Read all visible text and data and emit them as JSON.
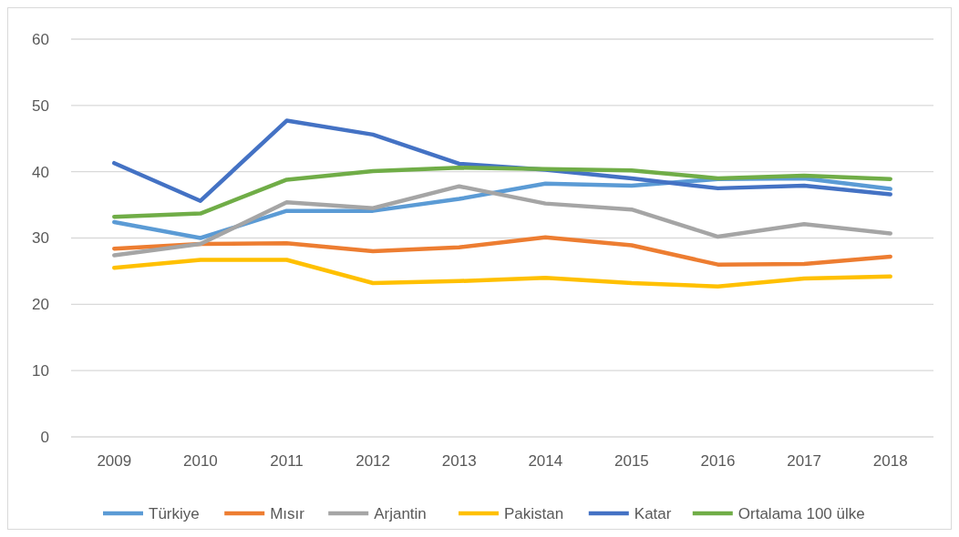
{
  "chart_data": {
    "type": "line",
    "categories": [
      "2009",
      "2010",
      "2011",
      "2012",
      "2013",
      "2014",
      "2015",
      "2016",
      "2017",
      "2018"
    ],
    "ylim": [
      0,
      60
    ],
    "yticks": [
      0,
      10,
      20,
      30,
      40,
      50,
      60
    ],
    "grid": "y",
    "legend": "bottom",
    "line_style": "solid",
    "marker": "none",
    "series": [
      {
        "name": "Türkiye",
        "color": "#5b9bd5",
        "values": [
          32.4,
          30.0,
          34.1,
          34.1,
          35.9,
          38.2,
          37.9,
          38.9,
          39.0,
          37.4
        ]
      },
      {
        "name": "Mısır",
        "color": "#ed7d31",
        "values": [
          28.4,
          29.1,
          29.2,
          28.0,
          28.6,
          30.1,
          28.9,
          26.0,
          26.1,
          27.2
        ]
      },
      {
        "name": "Arjantin",
        "color": "#a5a5a5",
        "values": [
          27.4,
          29.1,
          35.4,
          34.5,
          37.8,
          35.2,
          34.3,
          30.2,
          32.1,
          30.7
        ]
      },
      {
        "name": "Pakistan",
        "color": "#ffc000",
        "values": [
          25.5,
          26.7,
          26.7,
          23.2,
          23.5,
          24.0,
          23.2,
          22.7,
          23.9,
          24.2
        ]
      },
      {
        "name": "Katar",
        "color": "#4472c4",
        "values": [
          41.3,
          35.6,
          47.7,
          45.6,
          41.2,
          40.3,
          39.0,
          37.5,
          37.9,
          36.6
        ]
      },
      {
        "name": "Ortalama 100 ülke",
        "color": "#70ad47",
        "values": [
          33.2,
          33.7,
          38.8,
          40.1,
          40.6,
          40.4,
          40.2,
          39.0,
          39.4,
          38.9
        ]
      }
    ]
  }
}
